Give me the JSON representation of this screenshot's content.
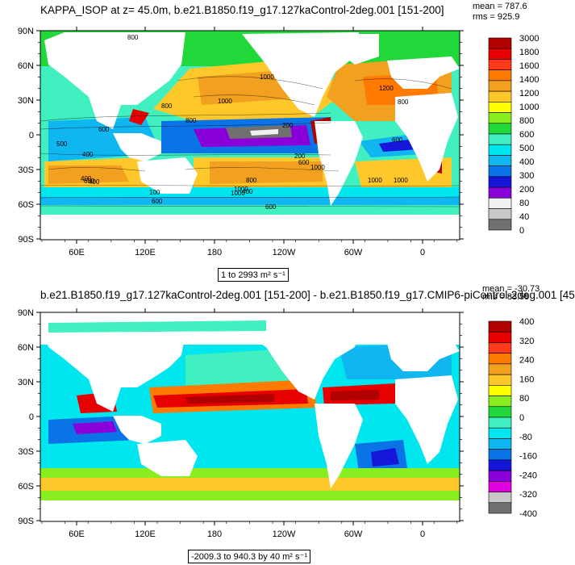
{
  "top_panel": {
    "title": "KAPPA_ISOP at z=  45.0m, b.e21.B1850.f19_g17.127kaControl-2deg.001 [151-200]",
    "mean_label": "mean = 787.6",
    "rms_label": "rms = 925.9",
    "range_label": "1 to 2993 m² s⁻¹"
  },
  "bottom_panel": {
    "title": "b.e21.B1850.f19_g17.127kaControl-2deg.001 [151-200] - b.e21.B1850.f19_g17.CMIP6-piControl-2deg.001 [45",
    "mean_label": "mean = -30.73",
    "rms_label": "rms = 83.59",
    "range_label": "-2009.3 to 940.3 by 40 m² s⁻¹"
  },
  "chart_data": [
    {
      "type": "heatmap",
      "title": "KAPPA_ISOP at z=  45.0m, b.e21.B1850.f19_g17.127kaControl-2deg.001 [151-200]",
      "xlabel": "",
      "ylabel": "",
      "x_tick_labels": [
        "60E",
        "120E",
        "180",
        "120W",
        "60W",
        "0"
      ],
      "y_tick_labels": [
        "90N",
        "60N",
        "30N",
        "0",
        "30S",
        "60S",
        "90S"
      ],
      "colorbar_labels": [
        "3000",
        "1800",
        "1600",
        "1400",
        "1200",
        "1000",
        "800",
        "600",
        "500",
        "400",
        "300",
        "200",
        "80",
        "40",
        "0"
      ],
      "colorbar_colors": [
        "#b00000",
        "#e60000",
        "#ff3a1a",
        "#ff7a00",
        "#f2a020",
        "#ffc82a",
        "#ffff00",
        "#88ee20",
        "#20d83a",
        "#40f0c0",
        "#00e6ee",
        "#10b6f0",
        "#0a73e6",
        "#1616d8",
        "#8a00d8",
        "#f0f0f0",
        "#c8c8c8",
        "#707070"
      ],
      "contour_labels": [
        "800",
        "1000",
        "1000",
        "800",
        "800",
        "600",
        "800",
        "1000",
        "1000",
        "600",
        "400",
        "100",
        "600",
        "1000",
        "1000",
        "200",
        "200",
        "600",
        "500",
        "400",
        "400",
        "1000",
        "1200",
        "800",
        "600",
        "400",
        "600"
      ],
      "mean": 787.6,
      "rms": 925.9,
      "min": 1,
      "max": 2993,
      "units": "m² s⁻¹"
    },
    {
      "type": "heatmap",
      "title": "b.e21.B1850.f19_g17.127kaControl-2deg.001 [151-200] - b.e21.B1850.f19_g17.CMIP6-piControl-2deg.001 [45",
      "xlabel": "",
      "ylabel": "",
      "x_tick_labels": [
        "60E",
        "120E",
        "180",
        "120W",
        "60W",
        "0"
      ],
      "y_tick_labels": [
        "90N",
        "60N",
        "30N",
        "0",
        "30S",
        "60S",
        "90S"
      ],
      "colorbar_labels": [
        "400",
        "320",
        "240",
        "160",
        "80",
        "0",
        "-80",
        "-160",
        "-240",
        "-320",
        "-400"
      ],
      "colorbar_colors": [
        "#b00000",
        "#e60000",
        "#ff3a1a",
        "#ff7a00",
        "#f2a020",
        "#ffc82a",
        "#ffff00",
        "#88ee20",
        "#20d83a",
        "#40f0c0",
        "#00e6ee",
        "#10b6f0",
        "#0a73e6",
        "#1616d8",
        "#8a00d8",
        "#e000e0",
        "#c8c8c8",
        "#707070"
      ],
      "mean": -30.73,
      "rms": 83.59,
      "min": -2009.3,
      "max": 940.3,
      "contour_interval": 40,
      "units": "m² s⁻¹"
    }
  ]
}
